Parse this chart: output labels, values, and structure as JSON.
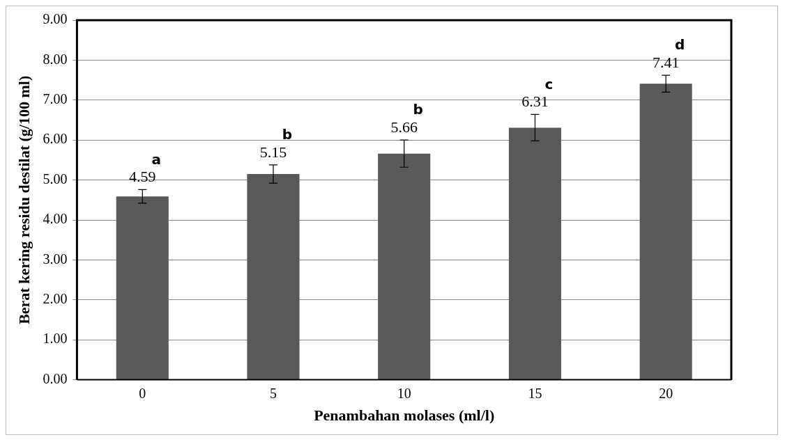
{
  "chart_data": {
    "type": "bar",
    "xlabel": "Penambahan molases (ml/l)",
    "ylabel": "Berat kering residu destilat (g/100 ml)",
    "categories": [
      "0",
      "5",
      "10",
      "15",
      "20"
    ],
    "values": [
      4.59,
      5.15,
      5.66,
      6.31,
      7.41
    ],
    "errors": [
      0.17,
      0.23,
      0.34,
      0.33,
      0.21
    ],
    "color": "#595959",
    "data_labels": true,
    "grid": "y",
    "legend": false,
    "ylim": [
      0,
      9
    ],
    "yticks": [
      {
        "value": 0,
        "label": "0.00"
      },
      {
        "value": 1,
        "label": "1.00"
      },
      {
        "value": 2,
        "label": "2.00"
      },
      {
        "value": 3,
        "label": "3.00"
      },
      {
        "value": 4,
        "label": "4.00"
      },
      {
        "value": 5,
        "label": "5.00"
      },
      {
        "value": 6,
        "label": "6.00"
      },
      {
        "value": 7,
        "label": "7.00"
      },
      {
        "value": 8,
        "label": "8.00"
      },
      {
        "value": 9,
        "label": "9.00"
      }
    ],
    "annotations": [
      "a",
      "b",
      "b",
      "c",
      "d"
    ]
  }
}
